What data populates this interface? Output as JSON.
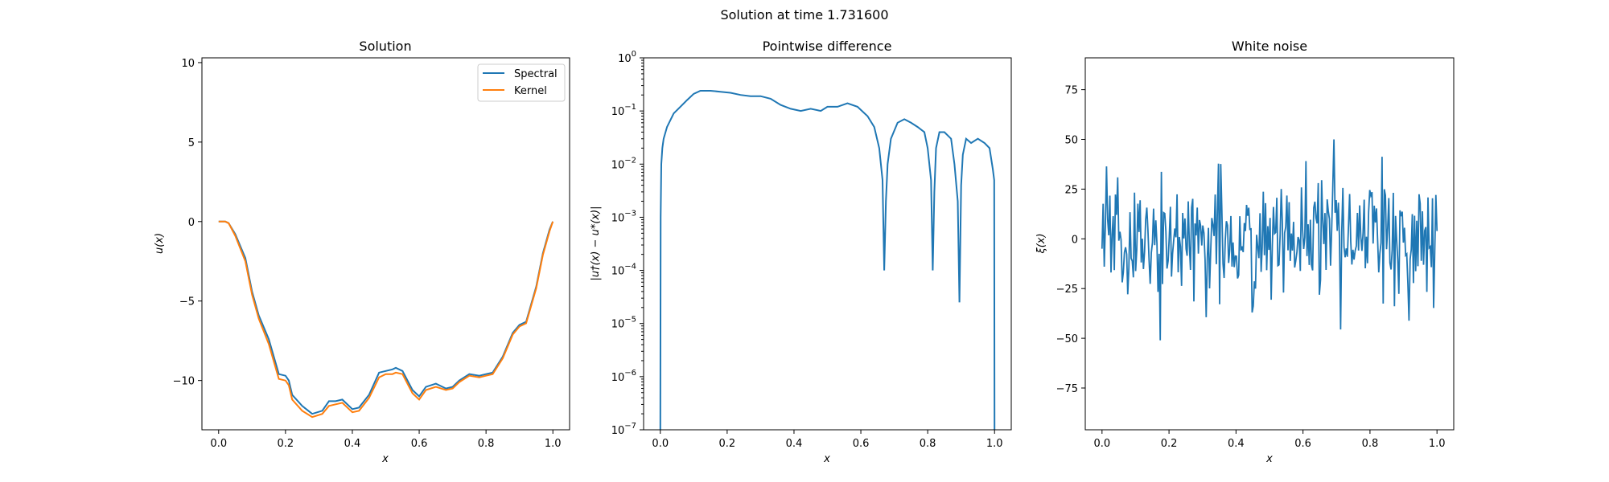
{
  "figure": {
    "title": "Solution at time 1.731600"
  },
  "colors": {
    "spectral": "#1f77b4",
    "kernel": "#ff7f0e",
    "noise": "#1f77b4",
    "difference": "#1f77b4"
  },
  "chart_data": [
    {
      "type": "line",
      "title": "Solution",
      "xlabel": "x",
      "ylabel": "u(x)",
      "xlim": [
        -0.05,
        1.05
      ],
      "ylim": [
        -13.1,
        10.3
      ],
      "xticks": [
        "0.0",
        "0.2",
        "0.4",
        "0.6",
        "0.8",
        "1.0"
      ],
      "yticks": [
        "10",
        "5",
        "0",
        "−5",
        "−10"
      ],
      "xtick_values": [
        0.0,
        0.2,
        0.4,
        0.6,
        0.8,
        1.0
      ],
      "ytick_values": [
        10,
        5,
        0,
        -5,
        -10
      ],
      "legend": "upper right",
      "x": [
        0.0,
        0.02,
        0.03,
        0.05,
        0.08,
        0.1,
        0.12,
        0.15,
        0.18,
        0.2,
        0.21,
        0.22,
        0.25,
        0.28,
        0.31,
        0.33,
        0.35,
        0.37,
        0.4,
        0.42,
        0.45,
        0.48,
        0.5,
        0.52,
        0.53,
        0.55,
        0.58,
        0.6,
        0.62,
        0.65,
        0.68,
        0.7,
        0.72,
        0.75,
        0.78,
        0.8,
        0.82,
        0.85,
        0.88,
        0.9,
        0.92,
        0.95,
        0.97,
        0.99,
        1.0
      ],
      "series": [
        {
          "name": "Spectral",
          "values": [
            0.0,
            0.0,
            -0.1,
            -0.8,
            -2.3,
            -4.4,
            -5.9,
            -7.4,
            -9.6,
            -9.7,
            -10.0,
            -10.9,
            -11.6,
            -12.1,
            -11.9,
            -11.3,
            -11.3,
            -11.2,
            -11.8,
            -11.7,
            -10.9,
            -9.5,
            -9.4,
            -9.3,
            -9.2,
            -9.4,
            -10.6,
            -11.0,
            -10.4,
            -10.2,
            -10.5,
            -10.4,
            -10.0,
            -9.6,
            -9.7,
            -9.6,
            -9.5,
            -8.5,
            -7.0,
            -6.5,
            -6.3,
            -4.1,
            -2.0,
            -0.5,
            0.0
          ]
        },
        {
          "name": "Kernel",
          "values": [
            0.0,
            0.0,
            -0.1,
            -0.9,
            -2.5,
            -4.6,
            -6.1,
            -7.7,
            -9.9,
            -10.0,
            -10.3,
            -11.2,
            -11.9,
            -12.3,
            -12.1,
            -11.6,
            -11.5,
            -11.4,
            -12.0,
            -11.9,
            -11.1,
            -9.8,
            -9.6,
            -9.6,
            -9.5,
            -9.6,
            -10.8,
            -11.2,
            -10.6,
            -10.4,
            -10.6,
            -10.5,
            -10.1,
            -9.7,
            -9.8,
            -9.7,
            -9.6,
            -8.6,
            -7.1,
            -6.6,
            -6.4,
            -4.2,
            -2.1,
            -0.6,
            0.0
          ]
        }
      ]
    },
    {
      "type": "line",
      "title": "Pointwise difference",
      "xlabel": "x",
      "ylabel": "|u†(x) − u*(x)|",
      "yscale": "log",
      "xlim": [
        -0.05,
        1.05
      ],
      "ylim": [
        1e-07,
        1
      ],
      "xticks": [
        "0.0",
        "0.2",
        "0.4",
        "0.6",
        "0.8",
        "1.0"
      ],
      "xtick_values": [
        0.0,
        0.2,
        0.4,
        0.6,
        0.8,
        1.0
      ],
      "ytick_exponents": [
        "0",
        "−1",
        "−2",
        "−3",
        "−4",
        "−5",
        "−6",
        "−7"
      ],
      "ytick_values": [
        0,
        -1,
        -2,
        -3,
        -4,
        -5,
        -6,
        -7
      ],
      "x": [
        0.0,
        0.001,
        0.003,
        0.006,
        0.01,
        0.02,
        0.04,
        0.06,
        0.08,
        0.1,
        0.12,
        0.15,
        0.18,
        0.21,
        0.24,
        0.27,
        0.3,
        0.33,
        0.36,
        0.39,
        0.42,
        0.45,
        0.48,
        0.5,
        0.53,
        0.56,
        0.59,
        0.62,
        0.64,
        0.655,
        0.665,
        0.67,
        0.675,
        0.68,
        0.69,
        0.71,
        0.73,
        0.75,
        0.77,
        0.79,
        0.8,
        0.81,
        0.815,
        0.82,
        0.825,
        0.835,
        0.85,
        0.87,
        0.88,
        0.89,
        0.895,
        0.9,
        0.905,
        0.915,
        0.93,
        0.95,
        0.97,
        0.985,
        0.995,
        0.999,
        1.0
      ],
      "values": [
        1e-07,
        0.001,
        0.01,
        0.02,
        0.03,
        0.05,
        0.09,
        0.12,
        0.16,
        0.21,
        0.24,
        0.24,
        0.23,
        0.22,
        0.2,
        0.19,
        0.19,
        0.17,
        0.13,
        0.11,
        0.1,
        0.11,
        0.1,
        0.12,
        0.12,
        0.14,
        0.12,
        0.08,
        0.05,
        0.02,
        0.005,
        0.0001,
        0.002,
        0.01,
        0.03,
        0.06,
        0.07,
        0.06,
        0.05,
        0.04,
        0.02,
        0.005,
        0.0001,
        0.003,
        0.02,
        0.04,
        0.04,
        0.03,
        0.01,
        0.002,
        2.5e-05,
        0.004,
        0.015,
        0.03,
        0.025,
        0.03,
        0.025,
        0.02,
        0.008,
        0.005,
        1e-07
      ]
    },
    {
      "type": "line",
      "title": "White noise",
      "xlabel": "x",
      "ylabel": "ξ(x)",
      "xlim": [
        -0.05,
        1.05
      ],
      "ylim": [
        -96,
        91
      ],
      "xticks": [
        "0.0",
        "0.2",
        "0.4",
        "0.6",
        "0.8",
        "1.0"
      ],
      "yticks": [
        "75",
        "50",
        "25",
        "0",
        "−25",
        "−50",
        "−75"
      ],
      "xtick_values": [
        0.0,
        0.2,
        0.4,
        0.6,
        0.8,
        1.0
      ],
      "ytick_values": [
        75,
        50,
        25,
        0,
        -25,
        -50,
        -75
      ],
      "points": 300,
      "seed": 7,
      "value_range": [
        -51,
        50
      ]
    }
  ]
}
